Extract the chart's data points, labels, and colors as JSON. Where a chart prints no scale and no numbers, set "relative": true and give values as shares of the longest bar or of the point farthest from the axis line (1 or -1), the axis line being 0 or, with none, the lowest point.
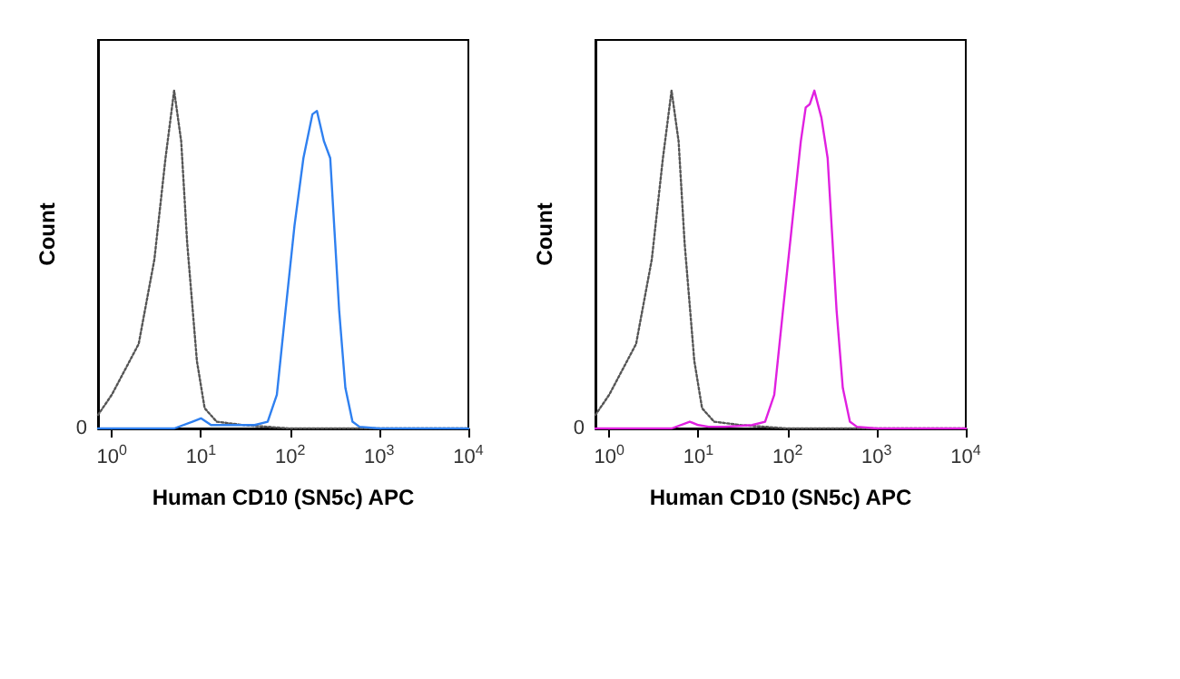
{
  "chart_data": [
    {
      "type": "line",
      "relative": true,
      "xlabel": "Human CD10 (SN5c) APC",
      "ylabel": "Count",
      "log": "x",
      "xlim": [
        0.7,
        10000
      ],
      "xticks": [
        {
          "value": 1,
          "label": "10$^{0}$"
        },
        {
          "value": 10,
          "label": "10$^{1}$"
        },
        {
          "value": 100,
          "label": "10$^{2}$"
        },
        {
          "value": 1000,
          "label": "10$^{3}$"
        },
        {
          "value": 10000,
          "label": "10$^{4}$"
        }
      ],
      "annotations": [
        "0"
      ],
      "grid": false,
      "marker": "none",
      "series": [
        {
          "color": "#555555",
          "line_style": "dotted",
          "x": [
            0.7,
            1,
            2,
            3,
            4,
            5,
            6,
            7,
            9,
            11,
            15,
            30,
            100,
            10000
          ],
          "values": [
            0.04,
            0.1,
            0.25,
            0.5,
            0.8,
            1,
            0.85,
            0.55,
            0.2,
            0.06,
            0.02,
            0.01,
            0,
            0
          ]
        },
        {
          "color": "#2f80f0",
          "line_style": "solid",
          "x": [
            0.7,
            5,
            8,
            10,
            13,
            20,
            40,
            56,
            71,
            89,
            112,
            141,
            178,
            200,
            240,
            282,
            355,
            417,
            501,
            600,
            1000,
            10000
          ],
          "values": [
            0,
            0,
            0.02,
            0.03,
            0.01,
            0.01,
            0.01,
            0.02,
            0.1,
            0.35,
            0.6,
            0.8,
            0.93,
            0.94,
            0.85,
            0.8,
            0.35,
            0.12,
            0.02,
            0.005,
            0,
            0
          ]
        }
      ]
    },
    {
      "type": "line",
      "relative": true,
      "xlabel": "Human CD10 (SN5c) APC",
      "ylabel": "Count",
      "log": "x",
      "xlim": [
        0.7,
        10000
      ],
      "xticks": [
        {
          "value": 1,
          "label": "10$^{0}$"
        },
        {
          "value": 10,
          "label": "10$^{1}$"
        },
        {
          "value": 100,
          "label": "10$^{2}$"
        },
        {
          "value": 1000,
          "label": "10$^{3}$"
        },
        {
          "value": 10000,
          "label": "10$^{4}$"
        }
      ],
      "annotations": [
        "0"
      ],
      "grid": false,
      "marker": "none",
      "series": [
        {
          "color": "#555555",
          "line_style": "dotted",
          "x": [
            0.7,
            1,
            2,
            3,
            4,
            5,
            6,
            7,
            9,
            11,
            15,
            30,
            100,
            10000
          ],
          "values": [
            0.04,
            0.1,
            0.25,
            0.5,
            0.8,
            1,
            0.85,
            0.55,
            0.2,
            0.06,
            0.02,
            0.01,
            0,
            0
          ]
        },
        {
          "color": "#e020e0",
          "line_style": "solid",
          "x": [
            0.7,
            5,
            8,
            10,
            13,
            20,
            40,
            56,
            71,
            89,
            112,
            141,
            160,
            178,
            200,
            240,
            282,
            355,
            417,
            501,
            600,
            1000,
            10000
          ],
          "values": [
            0,
            0,
            0.02,
            0.01,
            0.005,
            0.005,
            0.01,
            0.02,
            0.1,
            0.35,
            0.6,
            0.85,
            0.95,
            0.96,
            1,
            0.92,
            0.8,
            0.35,
            0.12,
            0.02,
            0.005,
            0,
            0
          ]
        }
      ]
    }
  ]
}
